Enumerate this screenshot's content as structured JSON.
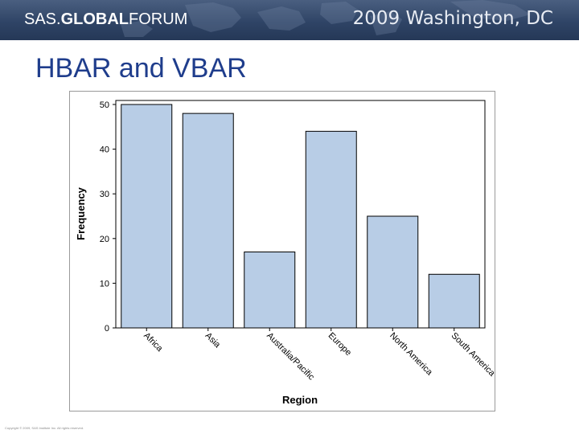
{
  "header": {
    "brand_sas": "SAS.",
    "brand_global": "GLOBAL",
    "brand_forum": "FORUM",
    "event": "2009 Washington, DC",
    "background_color": "#2f4466"
  },
  "slide": {
    "title": "HBAR and VBAR",
    "title_color": "#1f3d8c"
  },
  "chart_data": {
    "type": "bar",
    "categories": [
      "Africa",
      "Asia",
      "Australia/Pacific",
      "Europe",
      "North America",
      "South America"
    ],
    "values": [
      50,
      48,
      17,
      44,
      25,
      12
    ],
    "xlabel": "Region",
    "ylabel": "Frequency",
    "ylim": [
      0,
      50
    ],
    "yticks": [
      0,
      10,
      20,
      30,
      40,
      50
    ],
    "bar_color": "#b8cde6",
    "bar_edge_color": "#000000",
    "grid": false
  },
  "footer": {
    "text": "Copyright © 2009, SAS Institute Inc. All rights reserved."
  }
}
